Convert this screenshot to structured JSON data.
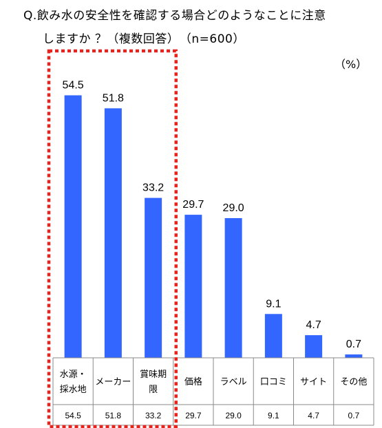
{
  "title_line1": "Q.飲み水の安全性を確認する場合どのようなことに注意",
  "title_line2": "しますか ？（複数回答）　（n=600）",
  "unit": "（%）",
  "colors": {
    "bar": "#3366FF",
    "highlight": "#E8231E",
    "grid": "#888888"
  },
  "chart_data": {
    "type": "bar",
    "categories": [
      "水源・採水地",
      "メーカー",
      "賞味期限",
      "価格",
      "ラベル",
      "口コミ",
      "サイト",
      "その他"
    ],
    "category_lines": [
      [
        "水源・",
        "採水地"
      ],
      [
        "メーカー"
      ],
      [
        "賞味期",
        "限"
      ],
      [
        "価格"
      ],
      [
        "ラベル"
      ],
      [
        "口コミ"
      ],
      [
        "サイト"
      ],
      [
        "その他"
      ]
    ],
    "values": [
      54.5,
      51.8,
      33.2,
      29.7,
      29.0,
      9.1,
      4.7,
      0.7
    ],
    "value_labels": [
      "54.5",
      "51.8",
      "33.2",
      "29.7",
      "29.0",
      "9.1",
      "4.7",
      "0.7"
    ],
    "highlighted_categories": 3,
    "ylim": [
      0,
      60
    ]
  }
}
